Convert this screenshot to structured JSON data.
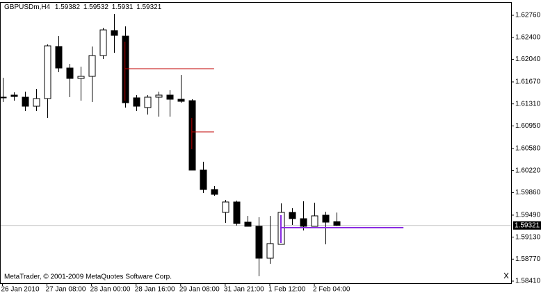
{
  "chart_data": {
    "type": "candlestick",
    "symbol": "GBPUSDm,H4",
    "footer": "MetaTrader, © 2001-2009 MetaQuotes Software Corp.",
    "categories": [
      "26 Jan 2010",
      null,
      null,
      null,
      "27 Jan 08:00",
      null,
      null,
      null,
      "28 Jan 00:00",
      null,
      null,
      null,
      "28 Jan 16:00",
      null,
      null,
      null,
      "29 Jan 08:00",
      null,
      null,
      null,
      "31 Jan 21:00",
      null,
      null,
      null,
      "1 Feb 12:00",
      null,
      null,
      null,
      "2 Feb 04:00",
      null,
      null
    ],
    "candles": {
      "open": [
        1.6142,
        1.61454,
        1.6142,
        1.61272,
        1.61397,
        1.62249,
        1.61897,
        1.61727,
        1.61761,
        1.62101,
        1.6251,
        1.62419,
        1.61409,
        1.6125,
        1.6142,
        1.61454,
        1.61386,
        1.61363,
        1.60227,
        1.59909,
        1.59535,
        1.59705,
        1.59375,
        1.59307,
        1.58785,
        1.59012,
        1.59535,
        1.59432,
        1.59307,
        1.59489,
        1.59382
      ],
      "high": [
        1.61738,
        1.61499,
        1.61511,
        1.61556,
        1.62283,
        1.62419,
        1.61965,
        1.6192,
        1.62249,
        1.62556,
        1.62783,
        1.62578,
        1.61454,
        1.61454,
        1.61511,
        1.61533,
        1.61783,
        1.61386,
        1.60364,
        1.59966,
        1.59739,
        1.59728,
        1.59478,
        1.59455,
        1.59478,
        1.59682,
        1.59603,
        1.59716,
        1.59694,
        1.59546,
        1.59532
      ],
      "low": [
        1.6134,
        1.61363,
        1.61193,
        1.61193,
        1.61079,
        1.61829,
        1.6142,
        1.61363,
        1.6134,
        1.62045,
        1.62147,
        1.6125,
        1.61193,
        1.61136,
        1.61102,
        1.61102,
        1.61329,
        1.60227,
        1.59853,
        1.59807,
        1.59364,
        1.59319,
        1.59307,
        1.5849,
        1.58694,
        1.59012,
        1.5933,
        1.59239,
        1.59307,
        1.59012,
        1.5931
      ],
      "close": [
        1.61409,
        1.61431,
        1.61272,
        1.61397,
        1.6226,
        1.61897,
        1.61727,
        1.61761,
        1.62101,
        1.62521,
        1.62431,
        1.61329,
        1.61272,
        1.6142,
        1.61454,
        1.61386,
        1.61352,
        1.60227,
        1.59909,
        1.5983,
        1.59705,
        1.59353,
        1.59307,
        1.58785,
        1.59024,
        1.59535,
        1.59432,
        1.59307,
        1.59478,
        1.59375,
        1.59321
      ]
    },
    "levels": [
      {
        "value": 1.61885,
        "color": "#c00000",
        "start": 11,
        "end": 19,
        "span": [
          1.61363,
          1.62328
        ]
      },
      {
        "value": 1.60852,
        "color": "#c00000",
        "start": 17,
        "end": 19,
        "span": [
          1.60568,
          1.61079
        ]
      },
      {
        "value": 1.59285,
        "color": "#8a2be2",
        "start": 25,
        "end": 36,
        "span": [
          1.59035,
          1.59489
        ]
      }
    ],
    "ylim": [
      1.58376,
      1.62976
    ],
    "yticks": [
      {
        "value": 1.6276,
        "label": "1.62760"
      },
      {
        "value": 1.624,
        "label": "1.62400"
      },
      {
        "value": 1.6204,
        "label": "1.62040"
      },
      {
        "value": 1.6167,
        "label": "1.61670"
      },
      {
        "value": 1.6131,
        "label": "1.61310"
      },
      {
        "value": 1.6095,
        "label": "1.60950"
      },
      {
        "value": 1.6058,
        "label": "1.60580"
      },
      {
        "value": 1.6022,
        "label": "1.60220"
      },
      {
        "value": 1.5986,
        "label": "1.59860"
      },
      {
        "value": 1.5949,
        "label": "1.59490"
      },
      {
        "value": 1.5913,
        "label": "1.59130"
      },
      {
        "value": 1.5877,
        "label": "1.58770"
      },
      {
        "value": 1.5841,
        "label": "1.58410"
      }
    ]
  }
}
